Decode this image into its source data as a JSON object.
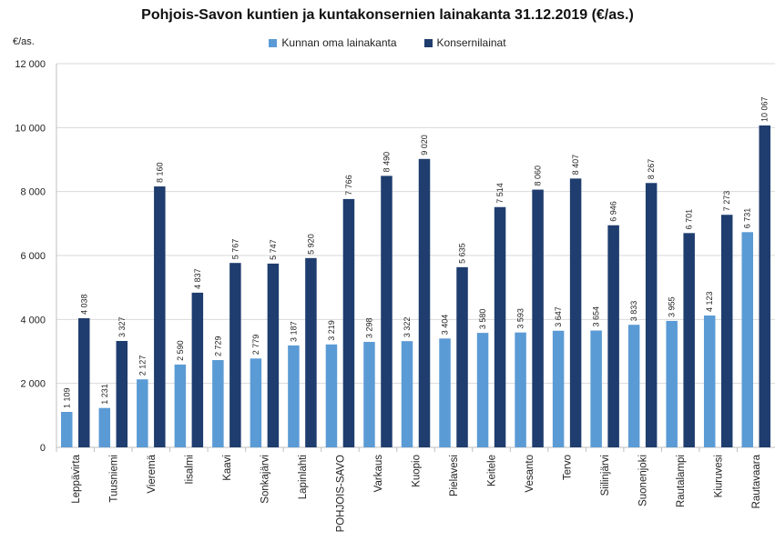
{
  "chart_data": {
    "type": "bar",
    "title": "Pohjois-Savon kuntien ja kuntakonsernien lainakanta 31.12.2019 (€/as.)",
    "ylabel": "€/as.",
    "ylim": [
      0,
      12000
    ],
    "yticks": [
      0,
      2000,
      4000,
      6000,
      8000,
      10000,
      12000
    ],
    "ytick_labels": [
      "0",
      "2 000",
      "4 000",
      "6 000",
      "8 000",
      "10 000",
      "12 000"
    ],
    "grid": true,
    "legend_position": "top",
    "categories": [
      "Leppävirta",
      "Tuusniemi",
      "Vieremä",
      "Iisalmi",
      "Kaavi",
      "Sonkajärvi",
      "Lapinlahti",
      "POHJOIS-SAVO",
      "Varkaus",
      "Kuopio",
      "Pielavesi",
      "Keitele",
      "Vesanto",
      "Tervo",
      "Siilinjärvi",
      "Suonenjoki",
      "Rautalampi",
      "Kiuruvesi",
      "Rautavaara"
    ],
    "series": [
      {
        "name": "Kunnan oma lainakanta",
        "color": "#5b9bd5",
        "values": [
          1109,
          1231,
          2127,
          2590,
          2729,
          2779,
          3187,
          3219,
          3298,
          3322,
          3404,
          3580,
          3593,
          3647,
          3654,
          3833,
          3955,
          4123,
          6731
        ],
        "labels": [
          "1 109",
          "1 231",
          "2 127",
          "2 590",
          "2 729",
          "2 779",
          "3 187",
          "3 219",
          "3 298",
          "3 322",
          "3 404",
          "3 580",
          "3 593",
          "3 647",
          "3 654",
          "3 833",
          "3 955",
          "4 123",
          "6 731"
        ]
      },
      {
        "name": "Konsernilainat",
        "color": "#1f3d6e",
        "values": [
          4038,
          3327,
          8160,
          4837,
          5767,
          5747,
          5920,
          7766,
          8490,
          9020,
          5635,
          7514,
          8060,
          8407,
          6946,
          8267,
          6701,
          7273,
          10067
        ],
        "labels": [
          "4 038",
          "3 327",
          "8 160",
          "4 837",
          "5 767",
          "5 747",
          "5 920",
          "7 766",
          "8 490",
          "9 020",
          "5 635",
          "7 514",
          "8 060",
          "8 407",
          "6 946",
          "8 267",
          "6 701",
          "7 273",
          "10 067"
        ]
      }
    ]
  }
}
